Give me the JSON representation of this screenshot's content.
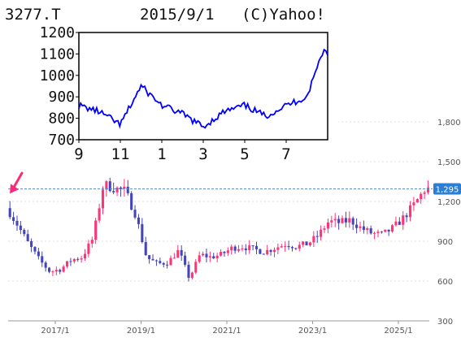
{
  "chart_data": [
    {
      "type": "candlestick",
      "x_tick_labels": [
        "2017/1",
        "2019/1",
        "2021/1",
        "2023/1",
        "2025/1"
      ],
      "y_tick_labels": [
        "300",
        "600",
        "900",
        "1,200",
        "1,500",
        "1,800"
      ],
      "ylim": [
        300,
        1800
      ],
      "current_price_label": "1,295",
      "current_price": 1295,
      "colors": {
        "up": "#ff3377",
        "down": "#4444bb",
        "price_line": "#5b8fd1",
        "price_badge": "#2a7fd4",
        "arrow": "#ff2a73"
      },
      "approx_close_path": [
        {
          "x": "2015/12",
          "y": 1150
        },
        {
          "x": "2016/3",
          "y": 1020
        },
        {
          "x": "2016/6",
          "y": 880
        },
        {
          "x": "2016/9",
          "y": 760
        },
        {
          "x": "2016/12",
          "y": 670
        },
        {
          "x": "2017/3",
          "y": 690
        },
        {
          "x": "2017/6",
          "y": 760
        },
        {
          "x": "2017/9",
          "y": 780
        },
        {
          "x": "2017/12",
          "y": 920
        },
        {
          "x": "2018/3",
          "y": 1330
        },
        {
          "x": "2018/6",
          "y": 1300
        },
        {
          "x": "2018/9",
          "y": 1280
        },
        {
          "x": "2018/12",
          "y": 1100
        },
        {
          "x": "2019/3",
          "y": 780
        },
        {
          "x": "2019/6",
          "y": 730
        },
        {
          "x": "2019/9",
          "y": 740
        },
        {
          "x": "2019/12",
          "y": 830
        },
        {
          "x": "2020/3",
          "y": 620
        },
        {
          "x": "2020/6",
          "y": 800
        },
        {
          "x": "2020/9",
          "y": 780
        },
        {
          "x": "2020/12",
          "y": 800
        },
        {
          "x": "2021/3",
          "y": 850
        },
        {
          "x": "2021/6",
          "y": 860
        },
        {
          "x": "2021/9",
          "y": 840
        },
        {
          "x": "2021/12",
          "y": 820
        },
        {
          "x": "2022/3",
          "y": 850
        },
        {
          "x": "2022/6",
          "y": 880
        },
        {
          "x": "2022/9",
          "y": 860
        },
        {
          "x": "2022/12",
          "y": 880
        },
        {
          "x": "2023/3",
          "y": 940
        },
        {
          "x": "2023/6",
          "y": 1050
        },
        {
          "x": "2023/9",
          "y": 1040
        },
        {
          "x": "2023/12",
          "y": 1060
        },
        {
          "x": "2024/3",
          "y": 1000
        },
        {
          "x": "2024/6",
          "y": 960
        },
        {
          "x": "2024/9",
          "y": 950
        },
        {
          "x": "2024/12",
          "y": 1000
        },
        {
          "x": "2025/3",
          "y": 1080
        },
        {
          "x": "2025/6",
          "y": 1180
        },
        {
          "x": "2025/9",
          "y": 1295
        }
      ]
    },
    {
      "type": "line",
      "header": {
        "ticker": "3277.T",
        "date": "2015/9/1",
        "source": "(C)Yahoo!"
      },
      "x_tick_labels": [
        "9",
        "11",
        "1",
        "3",
        "5",
        "7"
      ],
      "y_tick_labels": [
        "700",
        "800",
        "900",
        "1000",
        "1100",
        "1200"
      ],
      "ylim": [
        700,
        1200
      ],
      "line_color": "#0000ff",
      "series": [
        {
          "x": "2014/9",
          "y": 860
        },
        {
          "x": "2014/10",
          "y": 830
        },
        {
          "x": "2014/11",
          "y": 770
        },
        {
          "x": "2014/12",
          "y": 950
        },
        {
          "x": "2015/1",
          "y": 860
        },
        {
          "x": "2015/2",
          "y": 820
        },
        {
          "x": "2015/3",
          "y": 760
        },
        {
          "x": "2015/4",
          "y": 830
        },
        {
          "x": "2015/5",
          "y": 860
        },
        {
          "x": "2015/6",
          "y": 810
        },
        {
          "x": "2015/7",
          "y": 860
        },
        {
          "x": "2015/8",
          "y": 900
        },
        {
          "x": "2015/8/25",
          "y": 1120
        },
        {
          "x": "2015/8/31",
          "y": 1100
        }
      ]
    }
  ]
}
